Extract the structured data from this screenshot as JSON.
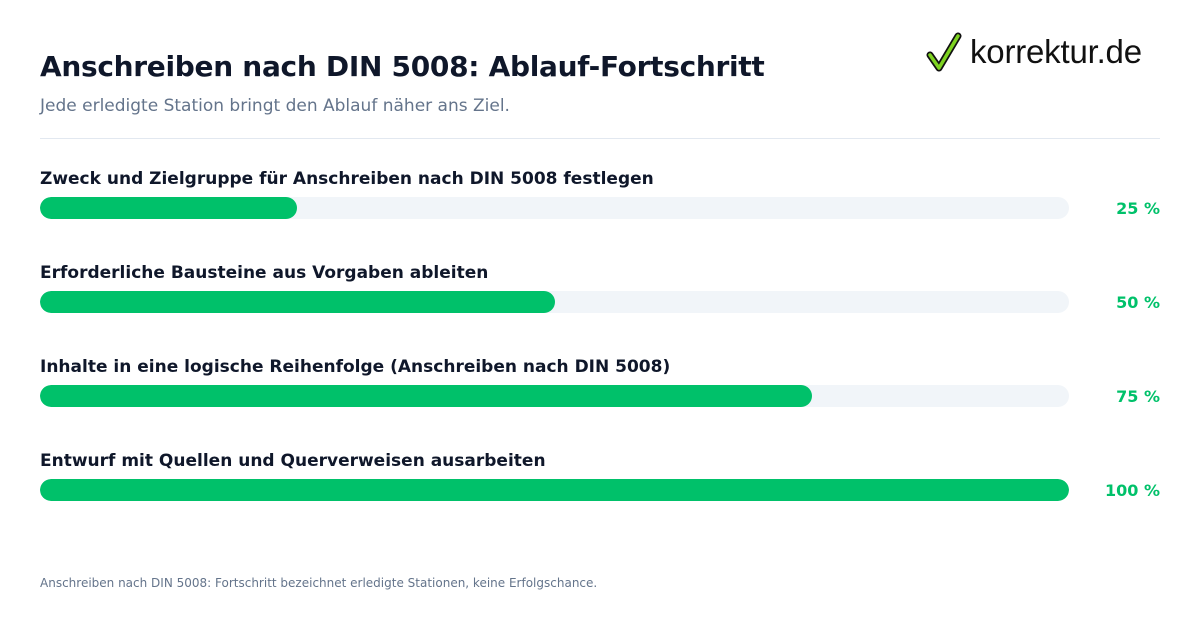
{
  "header": {
    "title": "Anschreiben nach DIN 5008: Ablauf-Fortschritt",
    "subtitle": "Jede erledigte Station bringt den Ablauf näher ans Ziel."
  },
  "brand": {
    "logo_text": "korrektur.de",
    "logo_icon": "checkmark-icon",
    "accent_color": "#00c16a",
    "logo_icon_color": "#7ed321"
  },
  "chart_data": {
    "type": "bar",
    "orientation": "horizontal",
    "categories": [
      "Zweck und Zielgruppe für Anschreiben nach DIN 5008 festlegen",
      "Erforderliche Bausteine aus Vorgaben ableiten",
      "Inhalte in eine logische Reihenfolge (Anschreiben nach DIN 5008)",
      "Entwurf mit Quellen und Querverweisen ausarbeiten"
    ],
    "values": [
      25,
      50,
      75,
      100
    ],
    "value_labels": [
      "25 %",
      "50 %",
      "75 %",
      "100 %"
    ],
    "xlim": [
      0,
      100
    ],
    "grid": false,
    "bar_color": "#00c16a",
    "track_color": "#f1f5f9"
  },
  "footnote": "Anschreiben nach DIN 5008: Fortschritt bezeichnet erledigte Stationen, keine Erfolgschance."
}
